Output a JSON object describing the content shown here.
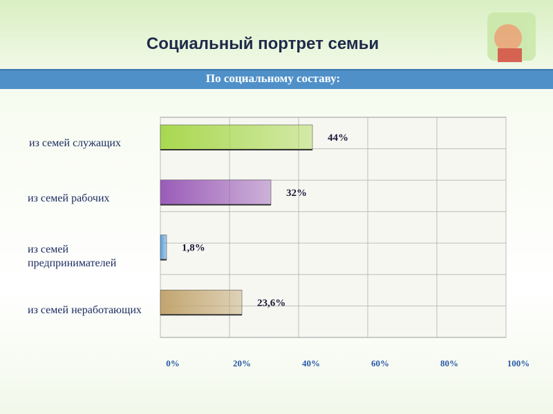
{
  "title": "Социальный портрет семьи",
  "subtitle": "По социальному составу:",
  "chart_data": {
    "type": "hbar",
    "categories": [
      "из семей служащих",
      "из семей рабочих",
      "из семей предпринимателей",
      "из семей неработающих"
    ],
    "values": [
      44,
      32,
      1.8,
      23.6
    ],
    "value_labels": [
      "44%",
      "32%",
      "1,8%",
      "23,6%"
    ],
    "colors": [
      "#a8d84e",
      "#9a5cb8",
      "#5a9fd8",
      "#c2a56f"
    ],
    "xlim": [
      0,
      100
    ],
    "xticks": [
      {
        "value": 0,
        "label": "0%"
      },
      {
        "value": 20,
        "label": "20%"
      },
      {
        "value": 40,
        "label": "40%"
      },
      {
        "value": 60,
        "label": "60%"
      },
      {
        "value": 80,
        "label": "80%"
      },
      {
        "value": 100,
        "label": "100%"
      }
    ],
    "grid": true
  }
}
